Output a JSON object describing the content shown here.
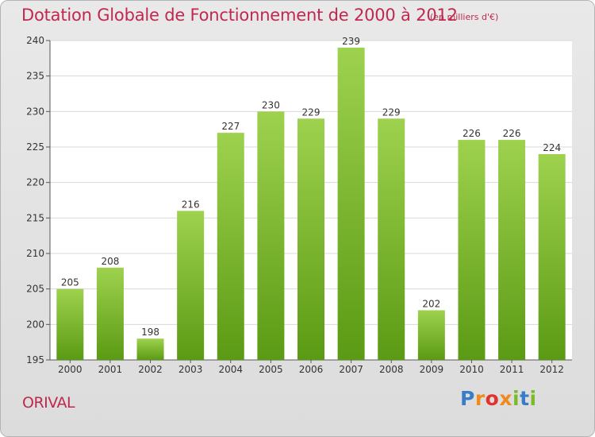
{
  "header": {
    "title": "Dotation Globale de Fonctionnement de 2000 à 2012",
    "unit": "(en milliers d'€)"
  },
  "footer": {
    "commune": "ORIVAL",
    "logo_text": "Proxiti"
  },
  "colors": {
    "title": "#c0284f",
    "bar_light": "#9ed24e",
    "bar_dark": "#5b9a14"
  },
  "chart_data": {
    "type": "bar",
    "title": "Dotation Globale de Fonctionnement de 2000 à 2012",
    "subtitle": "(en milliers d'€)",
    "xlabel": "",
    "ylabel": "",
    "categories": [
      "2000",
      "2001",
      "2002",
      "2003",
      "2004",
      "2005",
      "2006",
      "2007",
      "2008",
      "2009",
      "2010",
      "2011",
      "2012"
    ],
    "values": [
      205,
      208,
      198,
      216,
      227,
      230,
      229,
      239,
      229,
      202,
      226,
      226,
      224
    ],
    "ylim": [
      195,
      240
    ],
    "yticks": [
      195,
      200,
      205,
      210,
      215,
      220,
      225,
      230,
      235,
      240
    ],
    "grid": true,
    "legend": "none"
  }
}
